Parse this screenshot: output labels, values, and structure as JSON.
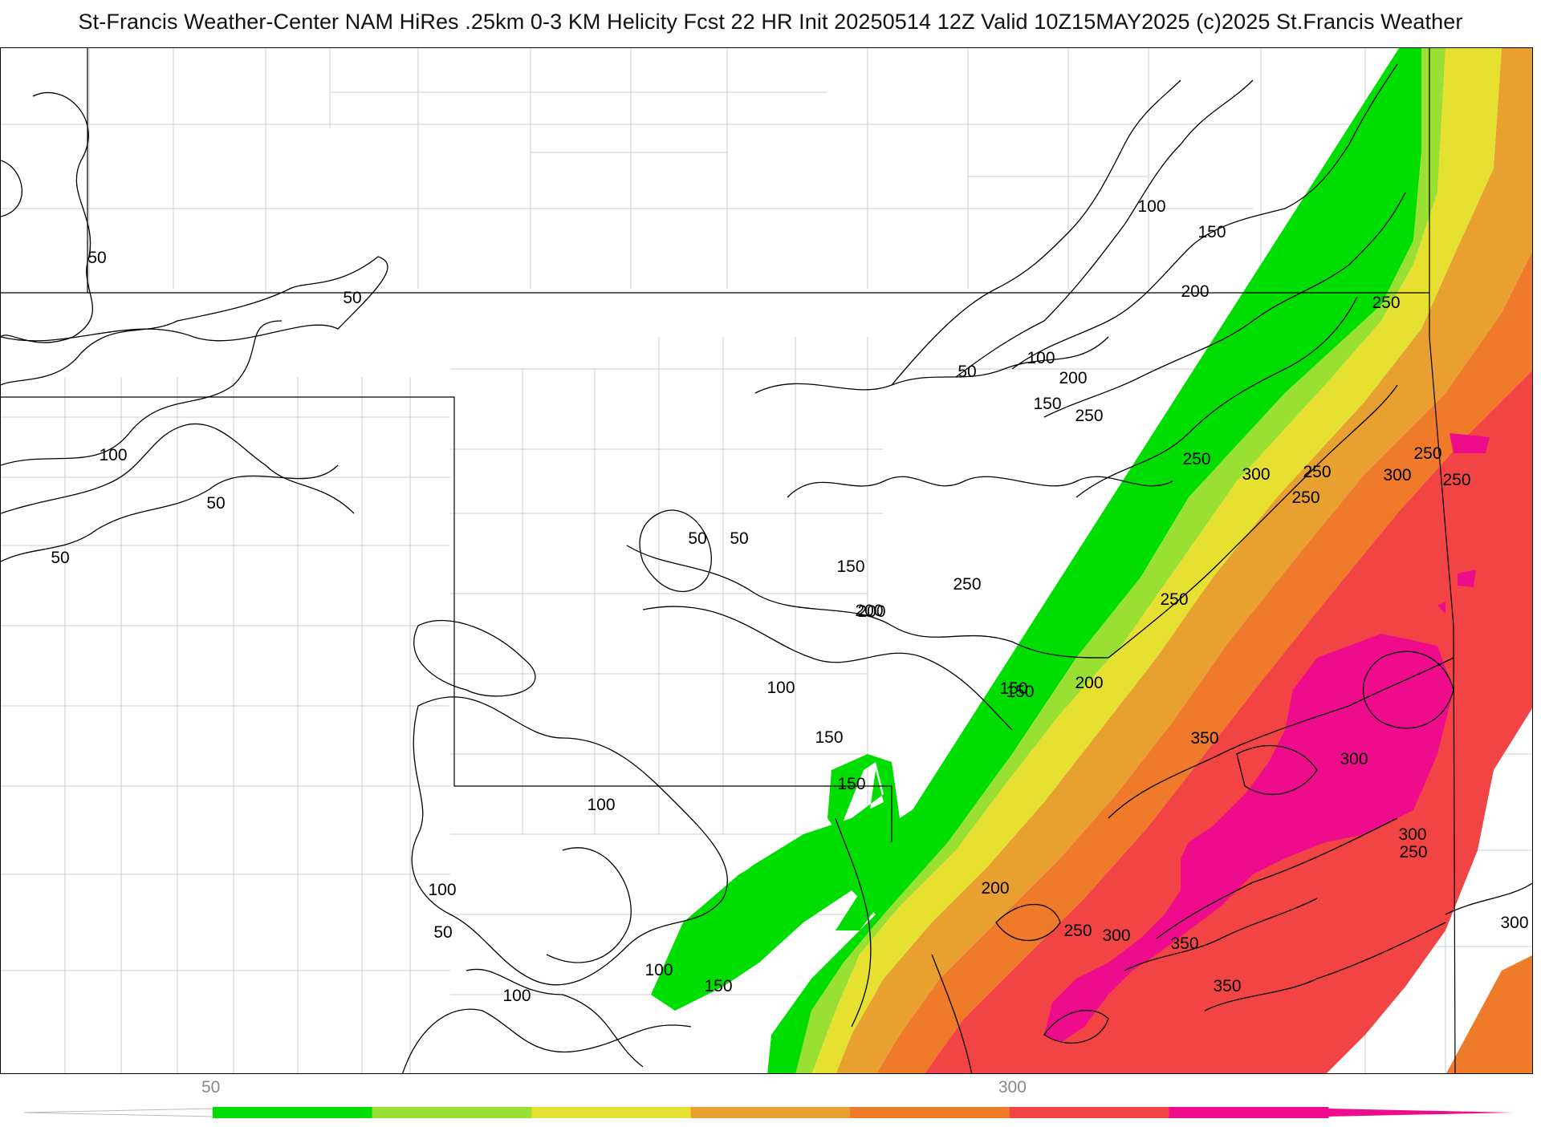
{
  "title": "St-Francis Weather-Center NAM HiRes .25km 0-3 KM Helicity Fcst 22 HR Init 20250514 12Z  Valid 10Z15MAY2025    (c)2025 St.Francis Weather",
  "colorbar": {
    "colors": [
      "#00dd00",
      "#99e033",
      "#e6e030",
      "#e8a030",
      "#ee7a2a",
      "#f24444",
      "#ee0c8c"
    ],
    "tick_labels": [
      {
        "label": "50",
        "value": 50
      },
      {
        "label": "300",
        "value": 300
      }
    ]
  },
  "colors": {
    "green": "#00dd00",
    "yellowgreen": "#99e033",
    "yellow": "#e6e030",
    "lightorange": "#e8a030",
    "orange": "#ee7a2a",
    "red": "#f24444",
    "magenta": "#ee0c8c",
    "borders": "#000000",
    "counties": "#cccccc"
  },
  "contour_labels": [
    "50",
    "50",
    "50",
    "100",
    "50",
    "50",
    "100",
    "150",
    "200",
    "50",
    "100",
    "200",
    "150",
    "250",
    "250",
    "300",
    "250",
    "250",
    "300",
    "250",
    "50",
    "150",
    "250",
    "200",
    "250",
    "100",
    "150",
    "200",
    "250",
    "250",
    "150",
    "350",
    "300",
    "100",
    "300",
    "250",
    "100",
    "200",
    "50",
    "150",
    "100",
    "250",
    "300",
    "350",
    "350",
    "300",
    "100",
    "150",
    "200",
    "150"
  ]
}
